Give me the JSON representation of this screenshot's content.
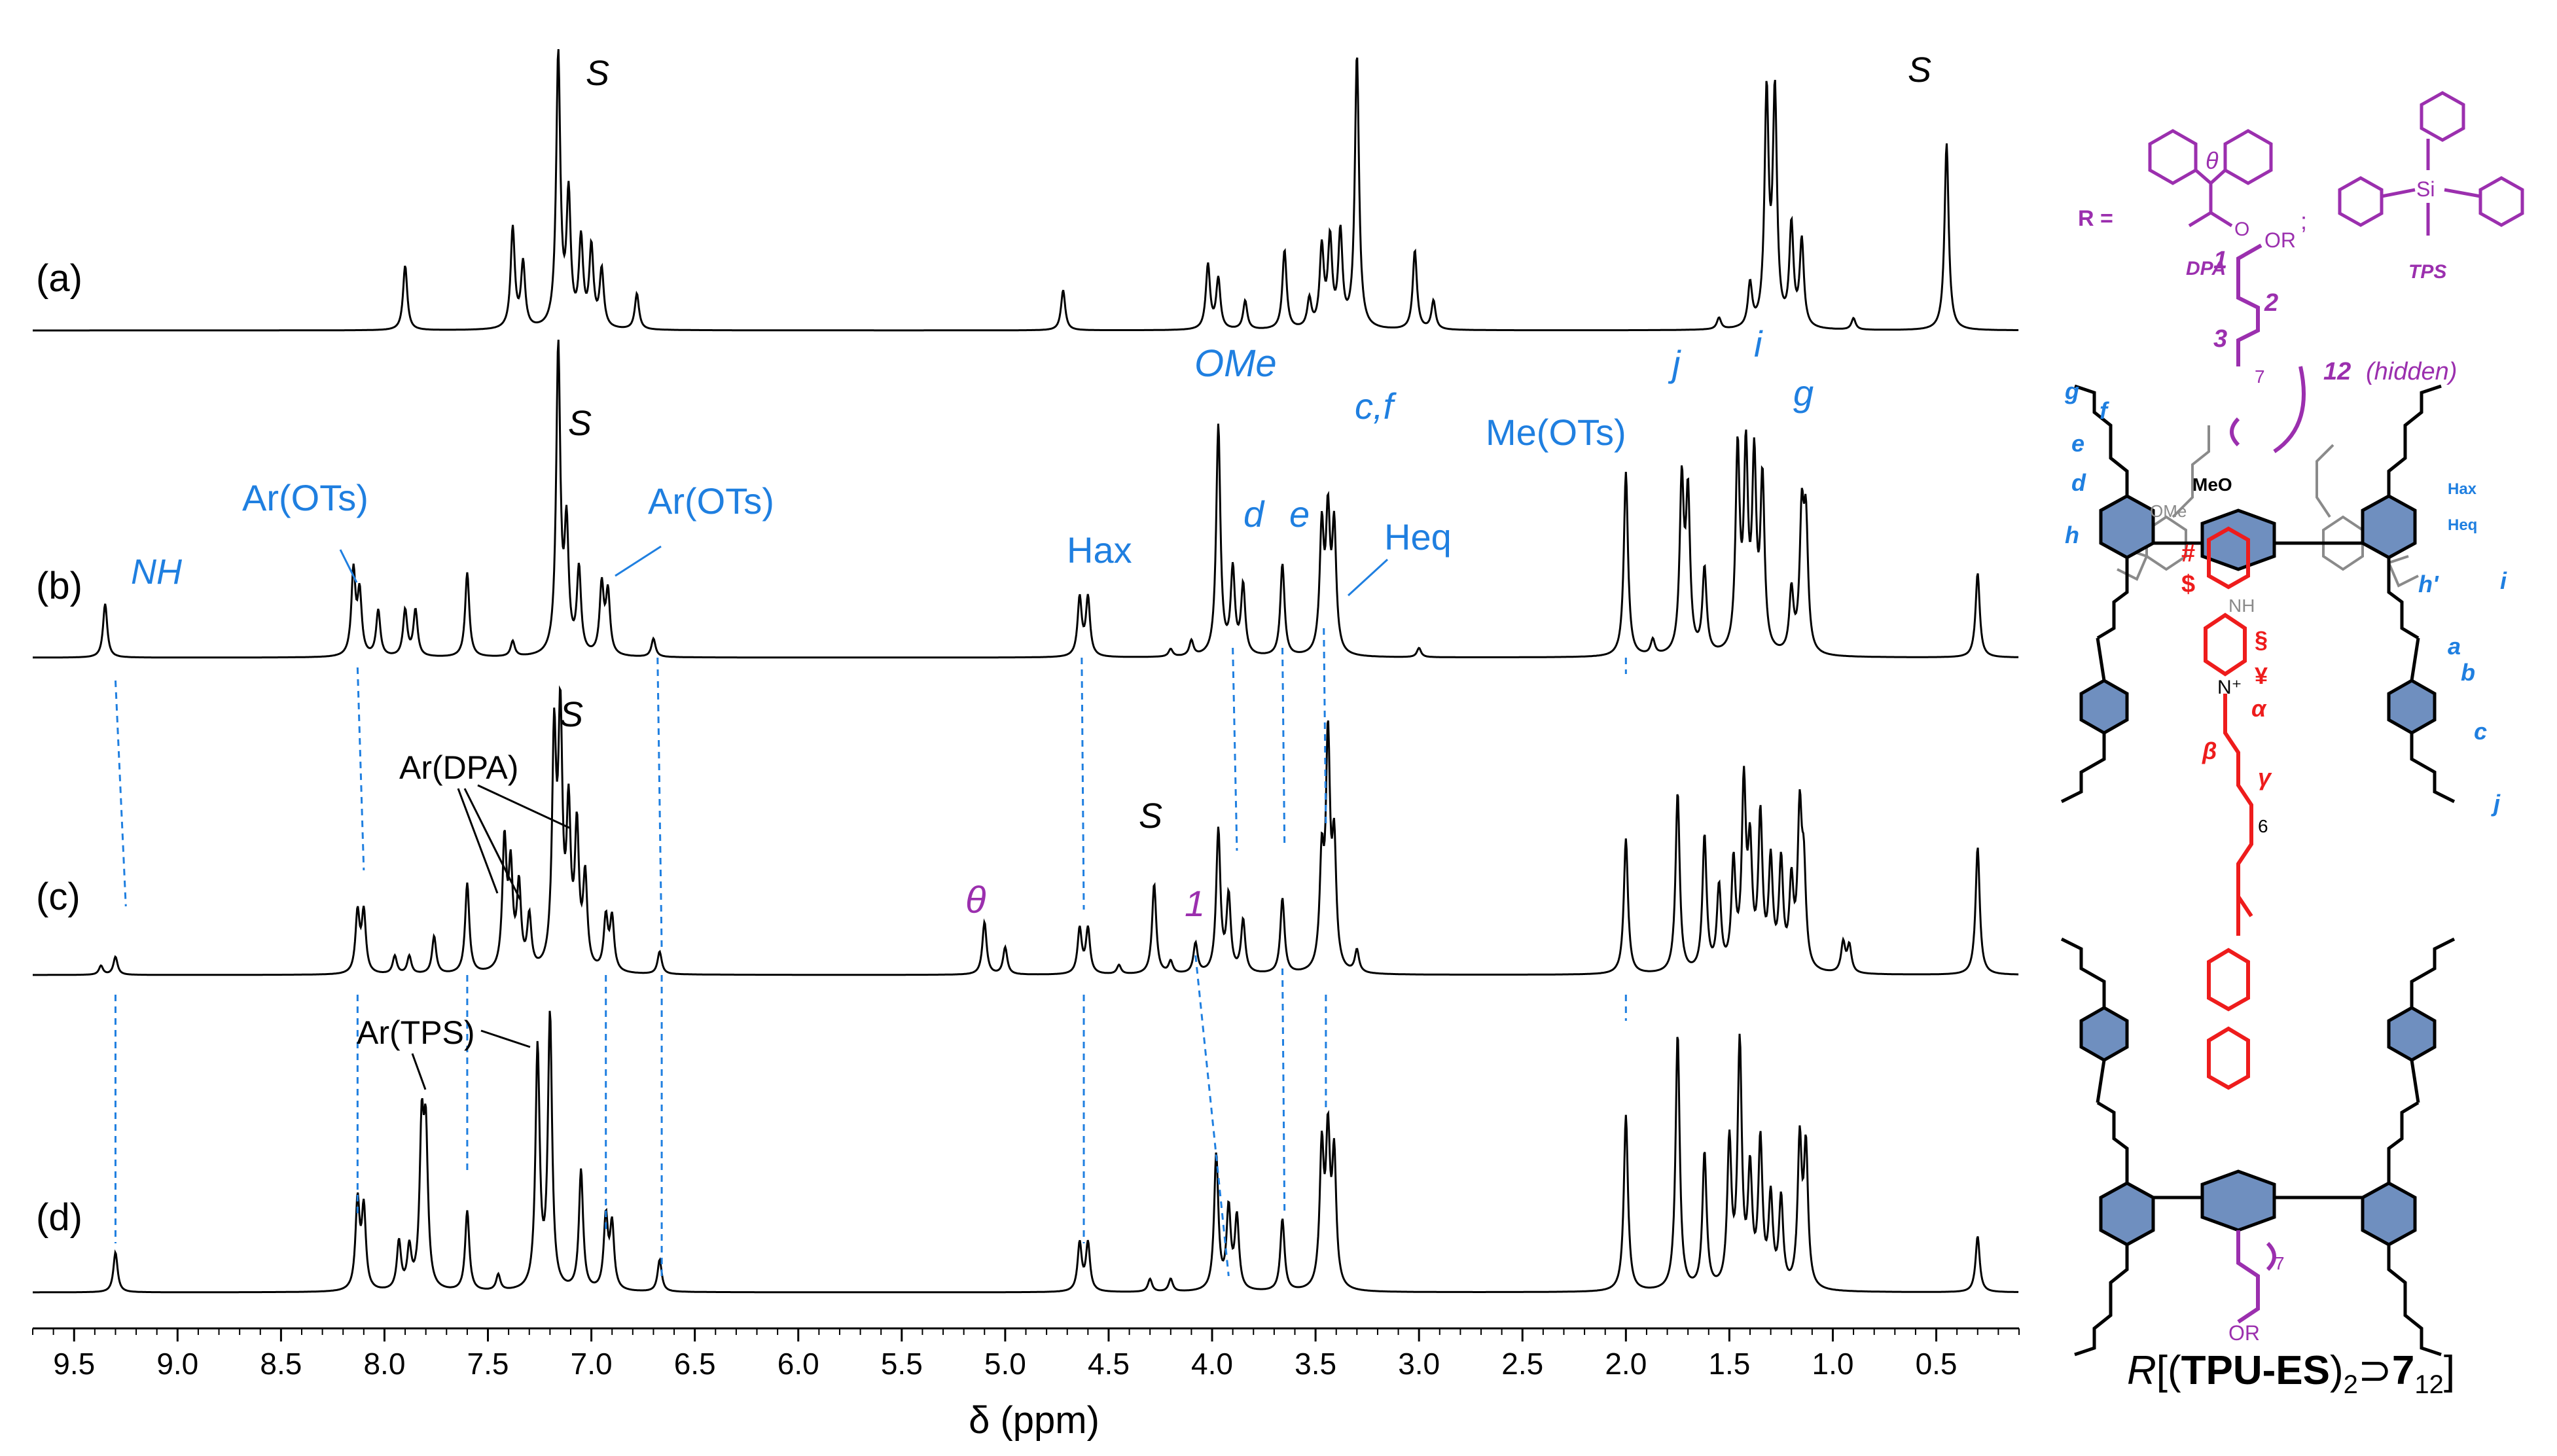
{
  "chart_data": {
    "type": "line",
    "xlabel": "δ (ppm)",
    "xlim": [
      9.7,
      0.1
    ],
    "x_ticks": [
      "9.5",
      "9.0",
      "8.5",
      "8.0",
      "7.5",
      "7.0",
      "6.5",
      "6.0",
      "5.5",
      "5.0",
      "4.5",
      "4.0",
      "3.5",
      "3.0",
      "2.5",
      "2.0",
      "1.5",
      "1.0",
      "0.5"
    ],
    "x_reversed": true,
    "grid": false,
    "series": [
      {
        "name": "(a)",
        "peaks": [
          [
            7.9,
            0.45
          ],
          [
            7.38,
            0.7
          ],
          [
            7.33,
            0.45
          ],
          [
            7.16,
            1.9
          ],
          [
            7.11,
            0.9
          ],
          [
            7.05,
            0.6
          ],
          [
            7.0,
            0.55
          ],
          [
            6.95,
            0.4
          ],
          [
            6.78,
            0.25
          ],
          [
            4.72,
            0.28
          ],
          [
            4.02,
            0.45
          ],
          [
            3.97,
            0.35
          ],
          [
            3.84,
            0.2
          ],
          [
            3.65,
            0.55
          ],
          [
            3.53,
            0.2
          ],
          [
            3.47,
            0.55
          ],
          [
            3.43,
            0.6
          ],
          [
            3.38,
            0.65
          ],
          [
            3.3,
            1.9
          ],
          [
            3.02,
            0.55
          ],
          [
            2.93,
            0.2
          ],
          [
            1.55,
            0.08
          ],
          [
            1.4,
            0.3
          ],
          [
            1.32,
            1.6
          ],
          [
            1.28,
            1.6
          ],
          [
            1.2,
            0.7
          ],
          [
            1.15,
            0.6
          ],
          [
            0.9,
            0.08
          ],
          [
            0.45,
            1.3
          ]
        ]
      },
      {
        "name": "(b)",
        "peaks": [
          [
            9.35,
            0.35
          ],
          [
            8.15,
            0.55
          ],
          [
            8.12,
            0.4
          ],
          [
            8.03,
            0.3
          ],
          [
            7.9,
            0.3
          ],
          [
            7.85,
            0.3
          ],
          [
            7.6,
            0.55
          ],
          [
            7.38,
            0.1
          ],
          [
            7.16,
            2.0
          ],
          [
            7.12,
            0.8
          ],
          [
            7.06,
            0.55
          ],
          [
            6.95,
            0.45
          ],
          [
            6.92,
            0.4
          ],
          [
            6.7,
            0.12
          ],
          [
            4.64,
            0.38
          ],
          [
            4.6,
            0.38
          ],
          [
            4.2,
            0.05
          ],
          [
            4.1,
            0.1
          ],
          [
            3.97,
            1.5
          ],
          [
            3.9,
            0.55
          ],
          [
            3.85,
            0.45
          ],
          [
            3.66,
            0.6
          ],
          [
            3.47,
            0.8
          ],
          [
            3.44,
            0.85
          ],
          [
            3.41,
            0.8
          ],
          [
            3.0,
            0.06
          ],
          [
            2.0,
            1.2
          ],
          [
            1.87,
            0.1
          ],
          [
            1.73,
            1.1
          ],
          [
            1.7,
            1.0
          ],
          [
            1.62,
            0.55
          ],
          [
            1.46,
            1.3
          ],
          [
            1.42,
            1.25
          ],
          [
            1.38,
            1.2
          ],
          [
            1.34,
            1.1
          ],
          [
            1.2,
            0.4
          ],
          [
            1.15,
            0.85
          ],
          [
            1.13,
            0.8
          ],
          [
            0.3,
            0.55
          ]
        ]
      },
      {
        "name": "(c)",
        "peaks": [
          [
            9.37,
            0.06
          ],
          [
            9.3,
            0.12
          ],
          [
            8.13,
            0.4
          ],
          [
            8.1,
            0.4
          ],
          [
            7.95,
            0.12
          ],
          [
            7.88,
            0.12
          ],
          [
            7.76,
            0.25
          ],
          [
            7.6,
            0.6
          ],
          [
            7.42,
            0.85
          ],
          [
            7.39,
            0.65
          ],
          [
            7.35,
            0.55
          ],
          [
            7.3,
            0.35
          ],
          [
            7.18,
            1.5
          ],
          [
            7.15,
            1.6
          ],
          [
            7.11,
            1.0
          ],
          [
            7.07,
            0.9
          ],
          [
            7.03,
            0.6
          ],
          [
            6.93,
            0.35
          ],
          [
            6.9,
            0.35
          ],
          [
            6.67,
            0.15
          ],
          [
            5.1,
            0.35
          ],
          [
            5.0,
            0.18
          ],
          [
            4.64,
            0.3
          ],
          [
            4.6,
            0.3
          ],
          [
            4.45,
            0.06
          ],
          [
            4.28,
            0.6
          ],
          [
            4.2,
            0.08
          ],
          [
            4.08,
            0.2
          ],
          [
            3.97,
            0.95
          ],
          [
            3.92,
            0.5
          ],
          [
            3.85,
            0.35
          ],
          [
            3.66,
            0.5
          ],
          [
            3.47,
            0.7
          ],
          [
            3.44,
            1.5
          ],
          [
            3.41,
            0.8
          ],
          [
            3.3,
            0.15
          ],
          [
            2.0,
            0.9
          ],
          [
            1.75,
            1.2
          ],
          [
            1.62,
            0.9
          ],
          [
            1.55,
            0.55
          ],
          [
            1.48,
            0.7
          ],
          [
            1.43,
            1.2
          ],
          [
            1.4,
            0.75
          ],
          [
            1.35,
            1.0
          ],
          [
            1.3,
            0.7
          ],
          [
            1.25,
            0.7
          ],
          [
            1.2,
            0.55
          ],
          [
            1.16,
            1.0
          ],
          [
            1.14,
            0.6
          ],
          [
            0.95,
            0.2
          ],
          [
            0.92,
            0.18
          ],
          [
            0.3,
            0.85
          ]
        ]
      },
      {
        "name": "(d)",
        "peaks": [
          [
            9.3,
            0.25
          ],
          [
            8.13,
            0.55
          ],
          [
            8.1,
            0.5
          ],
          [
            7.93,
            0.3
          ],
          [
            7.88,
            0.25
          ],
          [
            7.82,
            0.95
          ],
          [
            7.8,
            0.9
          ],
          [
            7.6,
            0.5
          ],
          [
            7.45,
            0.1
          ],
          [
            7.26,
            1.5
          ],
          [
            7.2,
            1.7
          ],
          [
            7.05,
            0.75
          ],
          [
            6.93,
            0.45
          ],
          [
            6.9,
            0.4
          ],
          [
            6.67,
            0.2
          ],
          [
            4.64,
            0.3
          ],
          [
            4.6,
            0.3
          ],
          [
            4.3,
            0.08
          ],
          [
            4.2,
            0.08
          ],
          [
            3.98,
            0.85
          ],
          [
            3.92,
            0.5
          ],
          [
            3.88,
            0.45
          ],
          [
            3.66,
            0.45
          ],
          [
            3.47,
            0.85
          ],
          [
            3.44,
            0.9
          ],
          [
            3.41,
            0.8
          ],
          [
            2.0,
            1.1
          ],
          [
            1.75,
            1.6
          ],
          [
            1.62,
            0.85
          ],
          [
            1.5,
            0.9
          ],
          [
            1.45,
            1.5
          ],
          [
            1.4,
            0.7
          ],
          [
            1.35,
            0.9
          ],
          [
            1.3,
            0.55
          ],
          [
            1.25,
            0.55
          ],
          [
            1.16,
            0.9
          ],
          [
            1.13,
            0.85
          ],
          [
            0.3,
            0.35
          ]
        ]
      }
    ],
    "annotations": {
      "a": {
        "label": "(a)",
        "peaks": [
          {
            "text": "S",
            "x": 7.2
          },
          {
            "text": "S",
            "x": 0.47
          }
        ]
      },
      "b": {
        "label": "(b)",
        "peaks": [
          {
            "text": "S",
            "x": 7.1
          },
          {
            "text": "NH",
            "x": 9.2
          },
          {
            "text": "Ar(OTs)",
            "x": 8.35
          },
          {
            "text": "Ar(OTs)",
            "x": 6.5
          },
          {
            "text": "Hax",
            "x": 4.65
          },
          {
            "text": "OMe",
            "x": 3.97
          },
          {
            "text": "d",
            "x": 3.85
          },
          {
            "text": "e",
            "x": 3.6
          },
          {
            "text": "c,f",
            "x": 3.27
          },
          {
            "text": "Heq",
            "x": 3.2
          },
          {
            "text": "Me(OTs)",
            "x": 2.3
          },
          {
            "text": "j",
            "x": 1.75
          },
          {
            "text": "i",
            "x": 1.34
          },
          {
            "text": "g",
            "x": 1.1
          }
        ]
      },
      "c": {
        "label": "(c)",
        "peaks": [
          {
            "text": "S",
            "x": 7.13
          },
          {
            "text": "Ar(DPA)",
            "x": 7.4
          },
          {
            "text": "θ",
            "x": 5.3
          },
          {
            "text": "S",
            "x": 4.3
          },
          {
            "text": "1",
            "x": 4.1
          }
        ]
      },
      "d": {
        "label": "(d)",
        "peaks": [
          {
            "text": "Ar(TPS)",
            "x": 7.6
          }
        ]
      }
    }
  },
  "structure": {
    "r_label": "R =",
    "sep": ";",
    "dpa": "DPA",
    "tps": "TPS",
    "theta": "θ",
    "o": "O",
    "si": "Si",
    "chain_labels": {
      "or_top": "OR",
      "one": "1",
      "two": "2",
      "three": "3",
      "seven_top": "7",
      "twelve": "12",
      "hidden": "(hidden)",
      "six": "6",
      "seven_bottom": "7",
      "or_bottom": "OR"
    },
    "core_labels": {
      "hash": "#",
      "dollar": "$",
      "section": "§",
      "yen": "¥",
      "alpha": "α",
      "beta": "β",
      "gamma": "γ",
      "nplus": "N⁺",
      "nh": "NH"
    },
    "blue_labels": {
      "g": "g",
      "f": "f",
      "e": "e",
      "d": "d",
      "h": "h",
      "hprime": "h'",
      "hax": "Hax",
      "heq": "Heq",
      "i": "i",
      "a": "a",
      "b": "b",
      "c": "c",
      "j": "j",
      "me": "MeO",
      "ome": "OMe"
    },
    "caption_r": "R",
    "caption_open": "[(",
    "caption_bold": "TPU-ES",
    "caption_close": ")",
    "caption_sub1": "2",
    "caption_sup": "⊃",
    "caption_seven": "7",
    "caption_sub2": "12",
    "caption_end": "]"
  },
  "colors": {
    "spectrum": "#000000",
    "blue": "#1f7fe0",
    "purple": "#9b2fae",
    "red": "#ee1c1c",
    "grey": "#8a8a8a",
    "ring": "#6f8fbf"
  }
}
